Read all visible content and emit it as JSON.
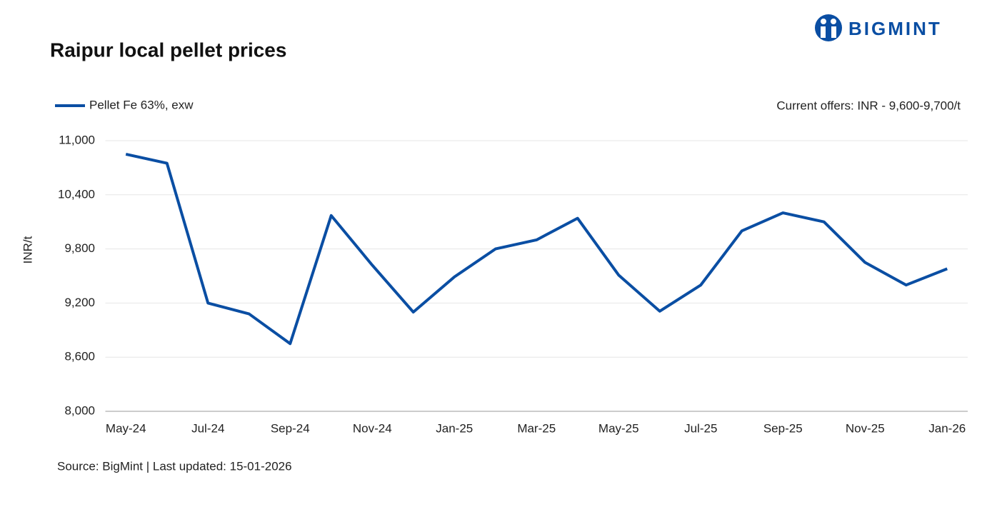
{
  "logo": "BIGMINT",
  "chart_data": {
    "type": "line",
    "title": "Raipur local pellet prices",
    "annotation": "Current offers: INR - 9,600-9,700/t",
    "source": "Source: BigMint | Last updated: 15-01-2026",
    "y_label": "INR/t",
    "categories": [
      "May-24",
      null,
      "Jul-24",
      null,
      "Sep-24",
      null,
      "Nov-24",
      null,
      "Jan-25",
      null,
      "Mar-25",
      null,
      "May-25",
      null,
      "Jul-25",
      null,
      "Sep-25",
      null,
      "Nov-25",
      null,
      "Jan-26"
    ],
    "series": [
      {
        "name": "Pellet Fe 63%, exw",
        "color": "#0a4ea3",
        "values": [
          10850,
          10750,
          9200,
          9080,
          8750,
          10170,
          9620,
          9100,
          9490,
          9800,
          9900,
          10140,
          9510,
          9110,
          9400,
          10000,
          10200,
          10100,
          9650,
          9400,
          9580
        ]
      }
    ],
    "ylim": [
      8000,
      11000
    ],
    "yticks": [
      {
        "value": 8000,
        "label": "8,000"
      },
      {
        "value": 8600,
        "label": "8,600"
      },
      {
        "value": 9200,
        "label": "9,200"
      },
      {
        "value": 9800,
        "label": "9,800"
      },
      {
        "value": 10400,
        "label": "10,400"
      },
      {
        "value": 11000,
        "label": "11,000"
      }
    ],
    "grid": true
  }
}
